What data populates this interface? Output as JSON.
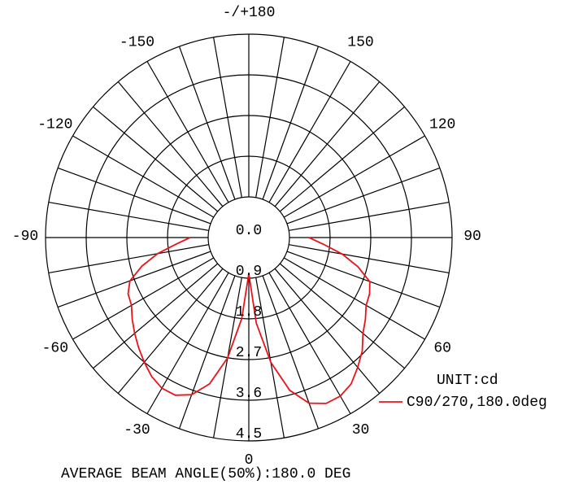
{
  "chart_data": {
    "type": "polar",
    "x": [
      -90,
      -85,
      -80,
      -75,
      -70,
      -65,
      -60,
      -55,
      -50,
      -45,
      -40,
      -35,
      -30,
      -25,
      -20,
      -15,
      -10,
      -5,
      0,
      5,
      10,
      15,
      20,
      25,
      30,
      35,
      40,
      45,
      50,
      55,
      60,
      65,
      70,
      75,
      80,
      85,
      90
    ],
    "series": [
      {
        "name": "C90/270,180.0deg",
        "color": "#e8141b",
        "values": [
          1.3,
          1.6,
          2.05,
          2.45,
          2.8,
          2.95,
          3.0,
          3.15,
          3.3,
          3.45,
          3.6,
          3.75,
          3.85,
          3.85,
          3.7,
          3.35,
          2.7,
          1.8,
          0.8,
          1.9,
          2.8,
          3.5,
          3.9,
          4.05,
          4.05,
          3.95,
          3.75,
          3.55,
          3.3,
          3.15,
          3.0,
          2.95,
          2.85,
          2.5,
          2.1,
          1.65,
          1.33
        ]
      }
    ],
    "rlim": [
      0,
      4.5
    ],
    "rticks": [
      {
        "value": 0,
        "label": "0.0"
      },
      0.9,
      1.8,
      2.7,
      3.6,
      4.5
    ],
    "xticks": [
      0,
      30,
      60,
      90,
      120,
      150,
      {
        "value": 180,
        "label": "-/+180"
      },
      -150,
      -120,
      -90,
      -60,
      -30
    ],
    "annotation": "UNIT:cd",
    "caption": "AVERAGE BEAM ANGLE(50%):180.0 DEG"
  }
}
